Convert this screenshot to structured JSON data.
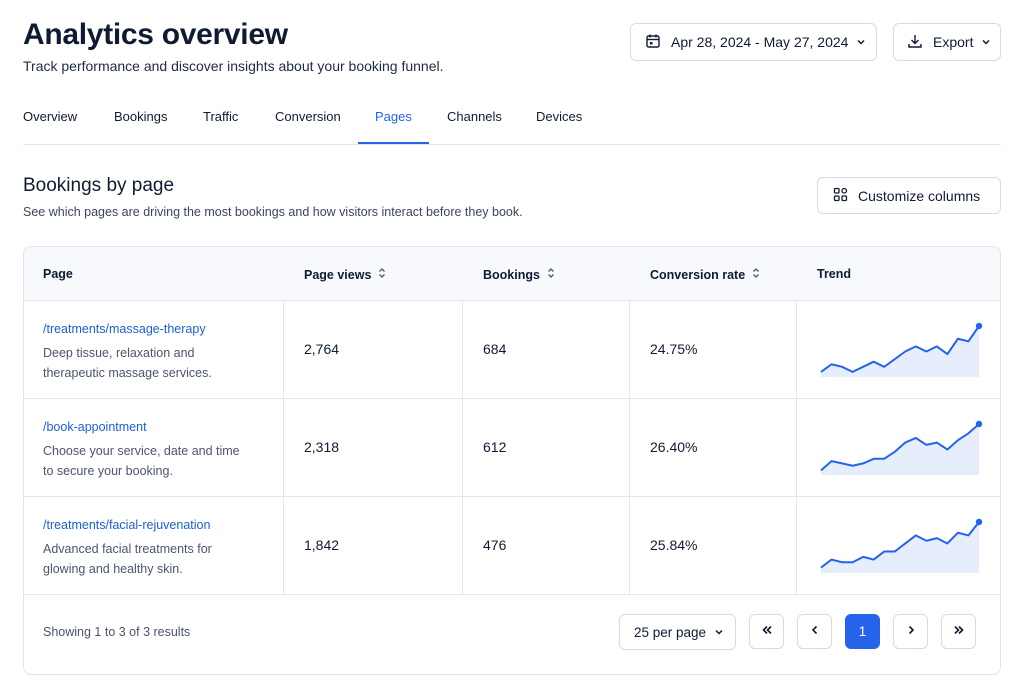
{
  "header": {
    "title": "Analytics overview",
    "subtitle": "Track performance and discover insights about your booking funnel.",
    "date_range": "Apr 28, 2024 - May 27, 2024",
    "export_label": "Export"
  },
  "tabs": [
    "Overview",
    "Bookings",
    "Traffic",
    "Conversion",
    "Pages",
    "Channels",
    "Devices"
  ],
  "active_tab": "Pages",
  "section": {
    "title": "Bookings by page",
    "subtitle": "See which pages are driving the most bookings and how visitors interact before they book.",
    "customize_label": "Customize columns"
  },
  "table": {
    "columns": [
      "Page",
      "Page views",
      "Bookings",
      "Conversion rate",
      "Trend"
    ],
    "rows": [
      {
        "page": "/treatments/massage-therapy",
        "description": "Deep tissue, relaxation and therapeutic massage services.",
        "page_views": "2,764",
        "bookings": "684",
        "conversion_rate": "24.75%",
        "trend": [
          2,
          5,
          4,
          2,
          4,
          6,
          4,
          7,
          10,
          12,
          10,
          12,
          9,
          15,
          14,
          20
        ]
      },
      {
        "page": "/book-appointment",
        "description": "Choose your service, date and time to secure your booking.",
        "page_views": "2,318",
        "bookings": "612",
        "conversion_rate": "26.40%",
        "trend": [
          2,
          6,
          5,
          4,
          5,
          7,
          7,
          10,
          14,
          16,
          13,
          14,
          11,
          15,
          18,
          22
        ]
      },
      {
        "page": "/treatments/facial-rejuvenation",
        "description": "Advanced facial treatments for glowing and healthy skin.",
        "page_views": "1,842",
        "bookings": "476",
        "conversion_rate": "25.84%",
        "trend": [
          2,
          5,
          4,
          4,
          6,
          5,
          8,
          8,
          11,
          14,
          12,
          13,
          11,
          15,
          14,
          19
        ]
      }
    ]
  },
  "footer": {
    "showing": "Showing 1 to 3 of 3 results",
    "per_page": "25 per page",
    "current_page": "1"
  },
  "colors": {
    "accent": "#2563eb",
    "link": "#1d5fd6",
    "spark_fill": "#e6eefc"
  }
}
